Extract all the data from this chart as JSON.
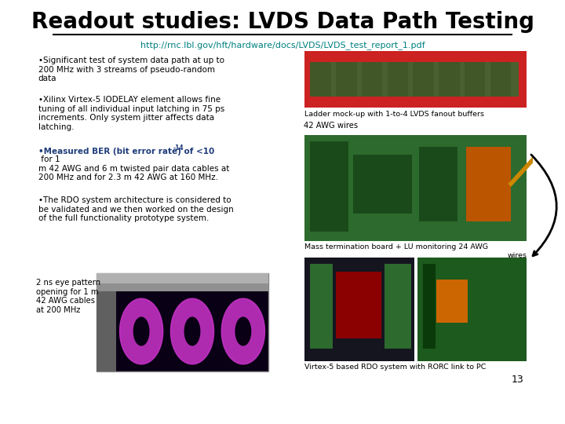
{
  "title": "Readout studies: LVDS Data Path Testing",
  "url_display": "http://rnc.lbl.gov/hft/hardware/docs/LVDS/LVDS_test_report_1.pdf",
  "bullet1": "•Significant test of system data path at up to\n200 MHz with 3 streams of pseudo-random\ndata",
  "bullet2": "•Xilinx Virtex-5 IODELAY element allows fine\ntuning of all individual input latching in 75 ps\nincrements. Only system jitter affects data\nlatching.",
  "bullet3_bold": "•Measured BER (bit error rate) of <10",
  "bullet3_exp": "-14",
  "bullet3_rest": " for 1\nm 42 AWG and 6 m twisted pair data cables at\n200 MHz and for 2.3 m 42 AWG at 160 MHz.",
  "bullet4": "•The RDO system architecture is considered to\nbe validated and we then worked on the design\nof the full functionality prototype system.",
  "label_ladder": "Ladder mock-up with 1-to-4 LVDS fanout buffers",
  "label_awg": "42 AWG wires",
  "label_mass1": "Mass termination board + LU monitoring 24 AWG",
  "label_mass2": "wires",
  "label_virtex": "Virtex-5 based RDO system with RORC link to PC",
  "label_eye": "2 ns eye pattern\nopening for 1 m\n42 AWG cables\nat 200 MHz",
  "page_num": "13",
  "title_color": "#000000",
  "url_color": "#008080",
  "text_color": "#000000",
  "bold_color": "#1f3d7a"
}
